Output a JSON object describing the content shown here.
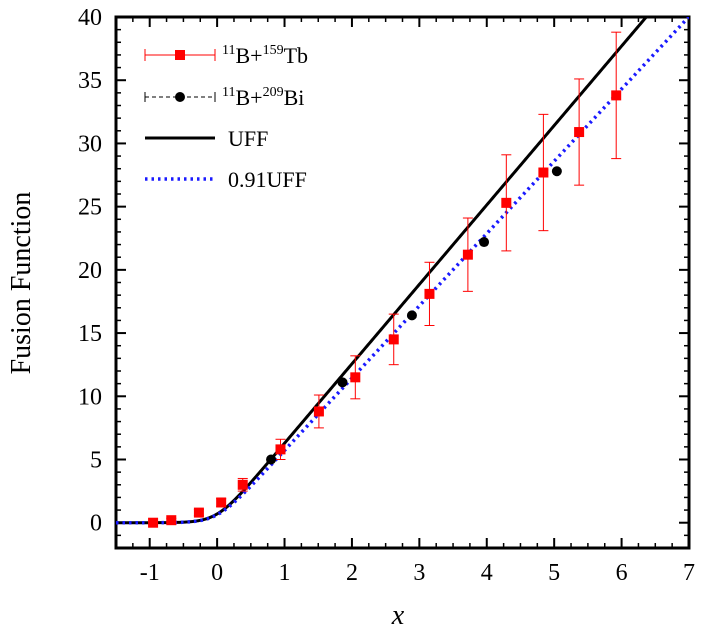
{
  "chart_data": {
    "type": "scatter",
    "xlabel": "x",
    "ylabel": "Fusion Function",
    "xlim": [
      -1.5,
      7
    ],
    "ylim": [
      -2,
      40
    ],
    "xticks": [
      -1,
      0,
      1,
      2,
      3,
      4,
      5,
      6,
      7
    ],
    "xtick_labels": [
      "-1",
      "0",
      "1",
      "2",
      "3",
      "4",
      "5",
      "6",
      "7"
    ],
    "yticks": [
      0,
      5,
      10,
      15,
      20,
      25,
      30,
      35,
      40
    ],
    "ytick_labels": [
      "0",
      "5",
      "10",
      "15",
      "20",
      "25",
      "30",
      "35",
      "40"
    ],
    "grid": false,
    "legend_position": "top-left",
    "series": [
      {
        "name": "11B+159Tb",
        "label_parts": {
          "pre1": "11",
          "base1": "B+",
          "pre2": "159",
          "base2": "Tb"
        },
        "kind": "scatter-errorbar",
        "marker": "square",
        "color": "#ff0000",
        "x": [
          -0.95,
          -0.68,
          -0.27,
          0.06,
          0.38,
          0.94,
          1.51,
          2.05,
          2.62,
          3.15,
          3.72,
          4.29,
          4.84,
          5.37,
          5.92
        ],
        "y": [
          0.0,
          0.2,
          0.8,
          1.6,
          3.0,
          5.8,
          8.8,
          11.5,
          14.5,
          18.1,
          21.2,
          25.3,
          27.7,
          30.9,
          33.8
        ],
        "err": [
          0.1,
          0.15,
          0.25,
          0.3,
          0.5,
          0.8,
          1.3,
          1.7,
          2.0,
          2.5,
          2.9,
          3.8,
          4.6,
          4.2,
          5.0
        ]
      },
      {
        "name": "11B+209Bi",
        "label_parts": {
          "pre1": "11",
          "base1": "B+",
          "pre2": "209",
          "base2": "Bi"
        },
        "kind": "scatter",
        "marker": "circle",
        "color": "#000000",
        "x": [
          0.8,
          1.86,
          2.89,
          3.96,
          5.04
        ],
        "y": [
          5.0,
          11.1,
          16.4,
          22.2,
          27.8
        ]
      },
      {
        "name": "UFF",
        "kind": "line",
        "style": "solid",
        "color": "#000000",
        "scale": 1.0
      },
      {
        "name": "0.91UFF",
        "kind": "line",
        "style": "dotted",
        "color": "#1a1aff",
        "scale": 0.91
      }
    ]
  }
}
